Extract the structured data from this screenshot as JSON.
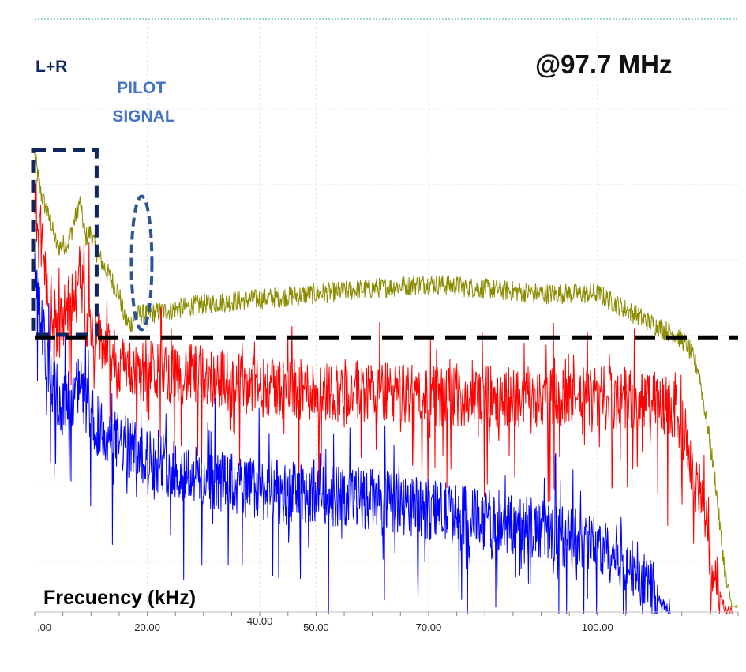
{
  "chart_data": {
    "type": "line",
    "title": "@97.7 MHz",
    "xlabel": "Frecuency (kHz)",
    "ylabel": "",
    "x_tick_labels": [
      ".00",
      "20.00",
      "40.00",
      "50.00",
      "70.00",
      "100.00"
    ],
    "x_tick_values": [
      0,
      20,
      40,
      50,
      70,
      100
    ],
    "xlim": [
      0,
      125
    ],
    "ylim": [
      0,
      100
    ],
    "grid": true,
    "annotations": [
      {
        "text": "L+R",
        "shape": "dashed-rectangle",
        "x_range": [
          0,
          11
        ],
        "y_range": [
          54,
          90
        ]
      },
      {
        "text": "PILOT\nSIGNAL",
        "shape": "dashed-ellipse",
        "x": 19,
        "y_range": [
          55,
          81
        ]
      },
      {
        "text": "",
        "shape": "dashed-horizontal-line",
        "y": 53.5,
        "x_range": [
          0,
          125
        ]
      }
    ],
    "series": [
      {
        "color": "#8b8b00",
        "noise": 4,
        "x": [
          0,
          1,
          3,
          4,
          6,
          8,
          9,
          10,
          11,
          13,
          15,
          16,
          17,
          18,
          20,
          25,
          30,
          40,
          50,
          60,
          70,
          80,
          90,
          95,
          100,
          105,
          110,
          114,
          116,
          118,
          120,
          121,
          122,
          123,
          124,
          125
        ],
        "y": [
          89,
          82,
          75,
          71,
          72,
          80,
          73,
          74,
          70,
          66,
          62,
          57,
          56,
          58,
          58,
          59,
          60,
          61,
          62,
          63,
          64,
          63,
          62,
          62,
          62,
          59,
          56,
          54,
          52,
          47,
          33,
          25,
          14,
          5,
          1,
          1
        ]
      },
      {
        "color": "#ff0000",
        "noise": 12,
        "x": [
          0,
          1,
          2,
          4,
          6,
          8,
          9,
          10,
          12,
          15,
          20,
          30,
          40,
          50,
          60,
          70,
          80,
          90,
          100,
          110,
          114,
          116,
          118,
          119,
          120,
          121,
          122,
          123,
          124
        ],
        "y": [
          80,
          74,
          64,
          55,
          60,
          66,
          58,
          56,
          52,
          48,
          47,
          46,
          44,
          43,
          43,
          42,
          42,
          42,
          42,
          41,
          39,
          33,
          24,
          18,
          12,
          6,
          2,
          0,
          0
        ]
      },
      {
        "color": "#0000ff",
        "noise": 12,
        "x": [
          0,
          1,
          2,
          3,
          5,
          8,
          10,
          12,
          15,
          20,
          30,
          40,
          50,
          60,
          70,
          80,
          90,
          100,
          105,
          108,
          110,
          112,
          113
        ],
        "y": [
          65,
          58,
          50,
          45,
          40,
          44,
          38,
          35,
          33,
          30,
          26,
          24,
          23,
          22,
          20,
          18,
          16,
          13,
          10,
          7,
          4,
          1,
          0
        ]
      }
    ]
  }
}
